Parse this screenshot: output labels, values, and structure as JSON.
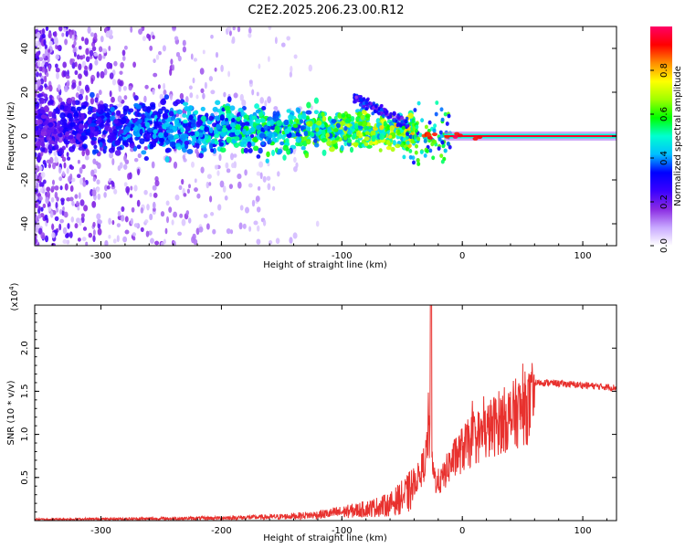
{
  "title": "C2E2.2025.206.23.00.R12",
  "chart_data": [
    {
      "type": "heatmap",
      "xlabel": "Height of straight line (km)",
      "ylabel": "Frequency (Hz)",
      "xlim": [
        -355,
        128
      ],
      "ylim": [
        -50,
        50
      ],
      "x_ticks": [
        -300,
        -200,
        -100,
        0,
        100
      ],
      "y_ticks": [
        -40,
        -20,
        0,
        20,
        40
      ],
      "colorbar": {
        "label": "Normalized spectral amplitude",
        "range": [
          0,
          1
        ],
        "ticks": [
          0.0,
          0.2,
          0.4,
          0.6,
          0.8
        ],
        "tick_labels": [
          "0.0",
          "0.2",
          "0.4",
          "0.6",
          "0.8"
        ],
        "colormap": [
          "#ffffff",
          "#c8a8ff",
          "#8a2be2",
          "#3a00ff",
          "#0000ff",
          "#00bfff",
          "#00ffd0",
          "#00ff00",
          "#a0ff00",
          "#ffff00",
          "#ff8c00",
          "#ff0000",
          "#ff0066"
        ]
      },
      "features": [
        {
          "name": "noise",
          "x_range": [
            -355,
            -130
          ],
          "freq_range": [
            -50,
            50
          ]
        },
        {
          "name": "main-band",
          "x_range": [
            -355,
            -40
          ],
          "freq_center": 5,
          "freq_width": 12
        },
        {
          "name": "upper-arc",
          "x_from": -90,
          "x_to": -45,
          "freq_from": 18,
          "freq_to": 5
        },
        {
          "name": "carrier-tone",
          "x_range": [
            -15,
            128
          ],
          "freq": 0
        }
      ]
    },
    {
      "type": "line",
      "xlabel": "Height of straight line (km)",
      "ylabel": "SNR (10 * v/v)",
      "multiplier_label": "(x10",
      "multiplier_exp": "4",
      "xlim": [
        -355,
        128
      ],
      "ylim": [
        0,
        2.5
      ],
      "x_ticks": [
        -300,
        -200,
        -100,
        0,
        100
      ],
      "y_ticks": [
        0.5,
        1.0,
        1.5,
        2.0
      ],
      "y_tick_labels": [
        "0.5",
        "1.0",
        "1.5",
        "2.0"
      ],
      "series_color": "#e8312e",
      "envelope": {
        "x": [
          -355,
          -250,
          -200,
          -150,
          -120,
          -100,
          -80,
          -60,
          -45,
          -35,
          -30,
          -28,
          -26,
          -22,
          -18,
          -10,
          0,
          10,
          20,
          30,
          40,
          48,
          55,
          70,
          90,
          110,
          128
        ],
        "y": [
          0.02,
          0.03,
          0.04,
          0.06,
          0.09,
          0.13,
          0.18,
          0.25,
          0.42,
          0.65,
          0.9,
          1.4,
          0.8,
          0.55,
          0.55,
          0.8,
          1.0,
          1.15,
          1.25,
          1.38,
          1.45,
          1.55,
          1.6,
          1.6,
          1.58,
          1.56,
          1.54
        ]
      },
      "spike": {
        "x": -26,
        "y": 2.5
      }
    }
  ]
}
